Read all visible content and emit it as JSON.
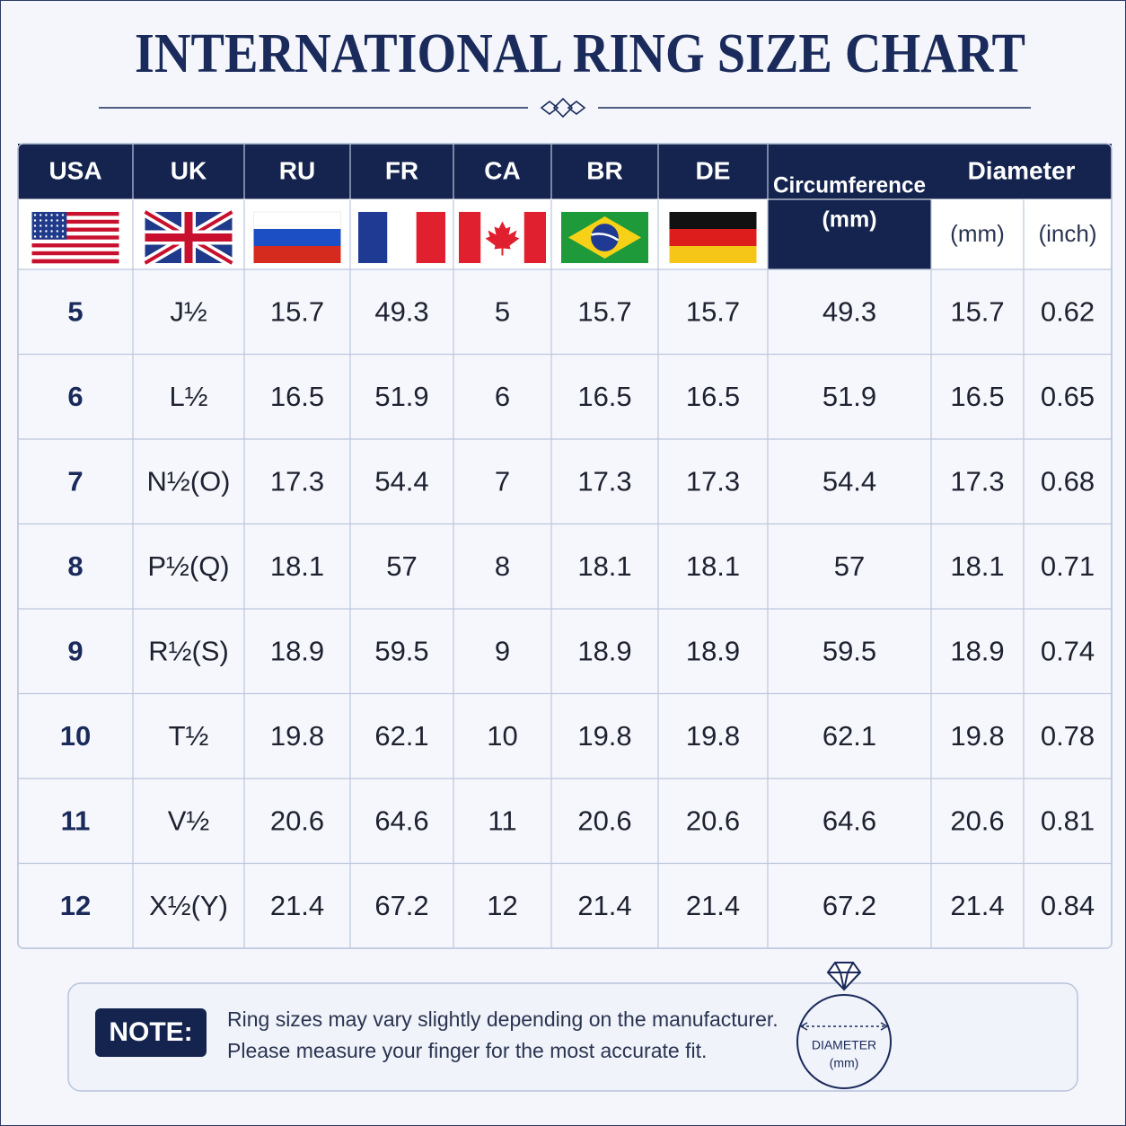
{
  "title": "INTERNATIONAL RING SIZE CHART",
  "table": {
    "headers": [
      "USA",
      "UK",
      "RU",
      "FR",
      "CA",
      "BR",
      "DE"
    ],
    "circumference_header": [
      "Circumference",
      "(mm)"
    ],
    "diameter_header": {
      "title": "Diameter",
      "units": [
        "(mm)",
        "(inch)"
      ]
    },
    "rows": [
      [
        "5",
        "J½",
        "15.7",
        "49.3",
        "5",
        "15.7",
        "15.7",
        "49.3",
        "15.7",
        "0.62"
      ],
      [
        "6",
        "L½",
        "16.5",
        "51.9",
        "6",
        "16.5",
        "16.5",
        "51.9",
        "16.5",
        "0.65"
      ],
      [
        "7",
        "N½(O)",
        "17.3",
        "54.4",
        "7",
        "17.3",
        "17.3",
        "54.4",
        "17.3",
        "0.68"
      ],
      [
        "8",
        "P½(Q)",
        "18.1",
        "57",
        "8",
        "18.1",
        "18.1",
        "57",
        "18.1",
        "0.71"
      ],
      [
        "9",
        "R½(S)",
        "18.9",
        "59.5",
        "9",
        "18.9",
        "18.9",
        "59.5",
        "18.9",
        "0.74"
      ],
      [
        "10",
        "T½",
        "19.8",
        "62.1",
        "10",
        "19.8",
        "19.8",
        "62.1",
        "19.8",
        "0.78"
      ],
      [
        "11",
        "V½",
        "20.6",
        "64.6",
        "11",
        "20.6",
        "20.6",
        "64.6",
        "20.6",
        "0.81"
      ],
      [
        "12",
        "X½(Y)",
        "21.4",
        "67.2",
        "12",
        "21.4",
        "21.4",
        "67.2",
        "21.4",
        "0.84"
      ]
    ]
  },
  "note": {
    "label": "NOTE:",
    "lines": [
      "Ring sizes may vary slightly depending on the manufacturer.",
      "Please measure your finger for the most accurate fit."
    ]
  },
  "diagram": {
    "label": "DIAMETER",
    "unit": "(mm)"
  }
}
